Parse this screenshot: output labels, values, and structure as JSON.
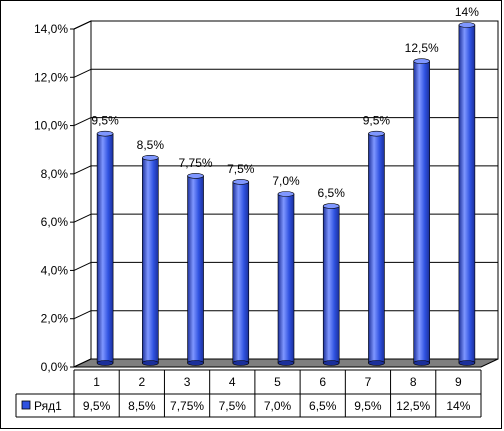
{
  "chart_data": {
    "type": "bar",
    "categories": [
      "1",
      "2",
      "3",
      "4",
      "5",
      "6",
      "7",
      "8",
      "9"
    ],
    "series": [
      {
        "name": "Ряд1",
        "values": [
          9.5,
          8.5,
          7.75,
          7.5,
          7.0,
          6.5,
          9.5,
          12.5,
          14.0
        ],
        "labels": [
          "9,5%",
          "8,5%",
          "7,75%",
          "7,5%",
          "7,0%",
          "6,5%",
          "9,5%",
          "12,5%",
          "14%"
        ]
      }
    ],
    "y_ticks": [
      "0,0%",
      "2,0%",
      "4,0%",
      "6,0%",
      "8,0%",
      "10,0%",
      "12,0%",
      "14,0%"
    ],
    "ylim": [
      0,
      14
    ],
    "grid": true,
    "legend": "left, inside data table",
    "data_table": true,
    "colors": {
      "bar": "#2f52e0",
      "bar_dark": "#1b2f9a",
      "bar_light": "#7f97ff",
      "floor": "#7f7f7f"
    }
  }
}
